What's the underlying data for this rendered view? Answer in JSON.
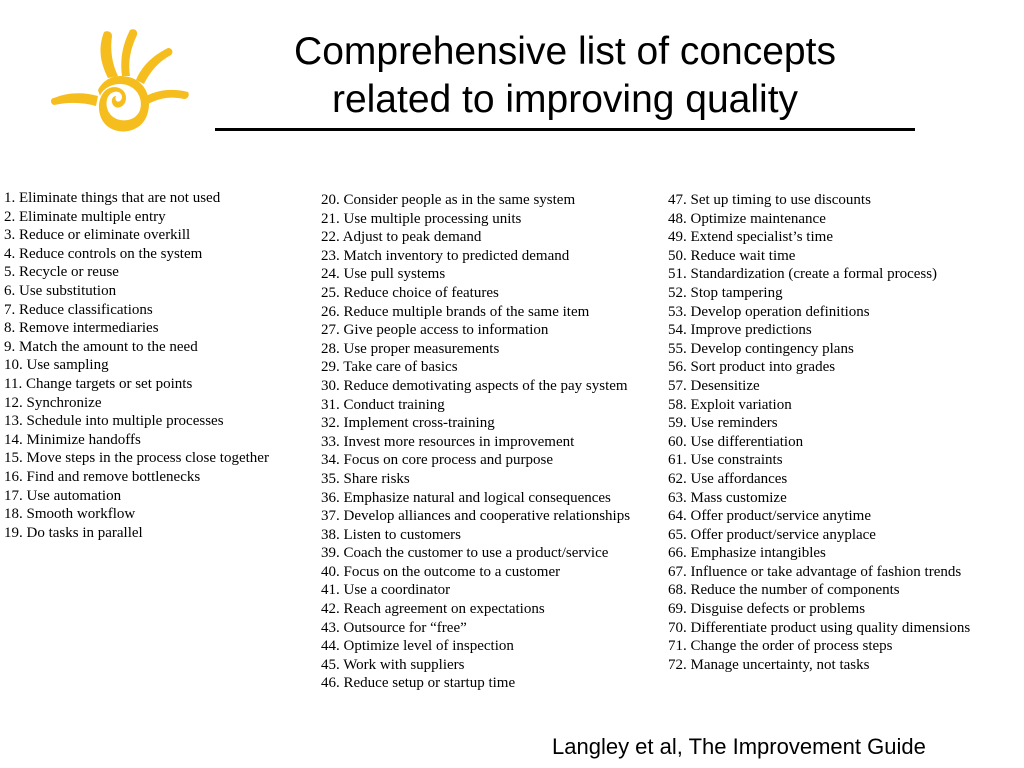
{
  "logo": {
    "icon": "sun-hand-icon",
    "color": "#f5be1e"
  },
  "title": {
    "line1": "Comprehensive list of concepts",
    "line2": "related to improving quality"
  },
  "columns": [
    [
      "1. Eliminate things that are not used",
      "2. Eliminate multiple entry",
      "3. Reduce or eliminate overkill",
      "4. Reduce controls on the system",
      "5. Recycle or reuse",
      "6. Use substitution",
      "7. Reduce classifications",
      "8. Remove intermediaries",
      "9. Match the amount to the need",
      "10. Use sampling",
      "11. Change targets or set points",
      "12. Synchronize",
      "13. Schedule into multiple processes",
      "14. Minimize handoffs",
      "15. Move steps in the process close together",
      "16. Find and remove bottlenecks",
      "17. Use automation",
      "18. Smooth workflow",
      "19. Do tasks in parallel"
    ],
    [
      "20. Consider people as in the same system",
      "21. Use multiple processing units",
      "22. Adjust to peak demand",
      "23. Match inventory to predicted demand",
      "24. Use pull systems",
      "25. Reduce choice of features",
      "26. Reduce multiple brands of the same item",
      "27. Give people access to information",
      "28. Use proper measurements",
      "29. Take care of basics",
      "30. Reduce demotivating aspects of the pay system",
      "31. Conduct training",
      "32. Implement cross-training",
      "33. Invest more resources in improvement",
      "34. Focus on core process and purpose",
      "35. Share risks",
      "36. Emphasize natural and logical consequences",
      "37. Develop alliances and cooperative relationships",
      "38. Listen to customers",
      "39. Coach the customer to use a product/service",
      "40. Focus on the outcome to a customer",
      "41. Use a coordinator",
      "42. Reach agreement on expectations",
      "43. Outsource for “free”",
      "44. Optimize level of inspection",
      "45. Work with suppliers",
      "46. Reduce setup or startup time"
    ],
    [
      "47. Set up timing to use discounts",
      "48. Optimize maintenance",
      "49. Extend specialist’s time",
      "50. Reduce wait time",
      "51. Standardization (create a formal process)",
      "52. Stop tampering",
      "53. Develop operation definitions",
      "54. Improve predictions",
      "55. Develop contingency plans",
      "56. Sort product into grades",
      "57. Desensitize",
      "58. Exploit variation",
      "59. Use reminders",
      "60. Use differentiation",
      "61. Use constraints",
      "62. Use affordances",
      "63. Mass customize",
      "64. Offer product/service anytime",
      "65. Offer product/service anyplace",
      "66. Emphasize intangibles",
      "67. Influence or take advantage of fashion trends",
      "68. Reduce the number of components",
      "69. Disguise defects or problems",
      "70. Differentiate product using quality dimensions",
      "71. Change the order of process steps",
      "72. Manage uncertainty, not tasks"
    ]
  ],
  "citation": "Langley et al, The Improvement Guide"
}
